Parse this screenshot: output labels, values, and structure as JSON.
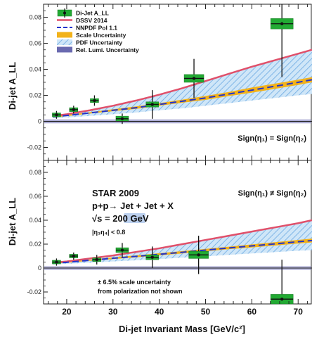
{
  "chart_data": {
    "type": "scatter",
    "xlabel": "Di-jet Invariant Mass [GeV/c²]",
    "xlim": [
      15,
      73
    ],
    "xticks": [
      20,
      30,
      40,
      50,
      60,
      70
    ],
    "panels": [
      {
        "id": "top",
        "ylabel": "Di-jet A_LL",
        "ylim": [
          -0.03,
          0.09
        ],
        "yticks": [
          -0.02,
          0,
          0.02,
          0.04,
          0.06,
          0.08
        ],
        "condition": "Sign(η₁) = Sign(η₂)",
        "legend": {
          "placement": "top-left",
          "entries": [
            {
              "label": "Di-Jet A_LL",
              "kind": "data"
            },
            {
              "label": "DSSV 2014",
              "kind": "line",
              "color": "#e0506a"
            },
            {
              "label": "NNPDF Pol 1.1",
              "kind": "dashed",
              "color": "#2233cc"
            },
            {
              "label": "Scale Uncertainty",
              "kind": "fill",
              "color": "#f2b21a"
            },
            {
              "label": "PDF Uncertainty",
              "kind": "hatch",
              "color": "#8fc3ee"
            },
            {
              "label": "Rel. Lumi. Uncertainty",
              "kind": "fill",
              "color": "#6a6ab0"
            }
          ]
        },
        "points": [
          {
            "x": 17.8,
            "y": 0.005,
            "err": 0.003,
            "sys": 0.0015
          },
          {
            "x": 21.5,
            "y": 0.009,
            "err": 0.003,
            "sys": 0.0015
          },
          {
            "x": 26.0,
            "y": 0.016,
            "err": 0.004,
            "sys": 0.0015
          },
          {
            "x": 32.0,
            "y": 0.002,
            "err": 0.004,
            "sys": 0.002
          },
          {
            "x": 38.5,
            "y": 0.013,
            "err": 0.011,
            "sys": 0.002
          },
          {
            "x": 47.5,
            "y": 0.033,
            "err": 0.015,
            "sys": 0.003
          },
          {
            "x": 66.5,
            "y": 0.075,
            "err": 0.041,
            "sys": 0.004
          }
        ]
      },
      {
        "id": "bottom",
        "ylabel": "Di-jet A_LL",
        "ylim": [
          -0.03,
          0.09
        ],
        "yticks": [
          -0.02,
          0,
          0.02,
          0.04,
          0.06,
          0.08
        ],
        "condition": "Sign(η₁) ≠ Sign(η₂)",
        "points": [
          {
            "x": 17.8,
            "y": 0.005,
            "err": 0.003,
            "sys": 0.0015
          },
          {
            "x": 21.5,
            "y": 0.01,
            "err": 0.003,
            "sys": 0.0015
          },
          {
            "x": 26.5,
            "y": 0.007,
            "err": 0.004,
            "sys": 0.0015
          },
          {
            "x": 32.0,
            "y": 0.015,
            "err": 0.006,
            "sys": 0.002
          },
          {
            "x": 38.5,
            "y": 0.009,
            "err": 0.009,
            "sys": 0.002
          },
          {
            "x": 48.5,
            "y": 0.011,
            "err": 0.016,
            "sys": 0.003
          },
          {
            "x": 66.5,
            "y": -0.026,
            "err": 0.033,
            "sys": 0.004
          }
        ]
      }
    ],
    "curves": {
      "top": {
        "x": [
          17,
          20,
          25,
          30,
          35,
          40,
          45,
          50,
          55,
          60,
          65,
          70,
          73
        ],
        "dssv": [
          0.004,
          0.0055,
          0.0085,
          0.012,
          0.016,
          0.0205,
          0.0255,
          0.031,
          0.0365,
          0.042,
          0.047,
          0.052,
          0.055
        ],
        "nnpdf": [
          0.0035,
          0.0045,
          0.0065,
          0.0085,
          0.0105,
          0.013,
          0.0155,
          0.018,
          0.021,
          0.024,
          0.027,
          0.03,
          0.032
        ],
        "pdf_hi": [
          0.004,
          0.0055,
          0.0085,
          0.012,
          0.016,
          0.0205,
          0.0255,
          0.031,
          0.0365,
          0.042,
          0.047,
          0.052,
          0.055
        ],
        "pdf_lo": [
          0.0025,
          0.003,
          0.0042,
          0.0055,
          0.0068,
          0.0085,
          0.01,
          0.012,
          0.014,
          0.016,
          0.018,
          0.02,
          0.021
        ],
        "scale_hi": [
          0.004,
          0.005,
          0.007,
          0.0093,
          0.0115,
          0.014,
          0.0167,
          0.0195,
          0.0226,
          0.026,
          0.029,
          0.032,
          0.034
        ],
        "scale_lo": [
          0.003,
          0.004,
          0.006,
          0.0078,
          0.0096,
          0.012,
          0.0143,
          0.0165,
          0.0194,
          0.022,
          0.025,
          0.028,
          0.03
        ]
      },
      "bottom": {
        "x": [
          17,
          20,
          25,
          30,
          35,
          40,
          45,
          50,
          55,
          60,
          65,
          70,
          73
        ],
        "dssv": [
          0.0045,
          0.0055,
          0.008,
          0.0105,
          0.0135,
          0.0165,
          0.02,
          0.0235,
          0.027,
          0.0305,
          0.034,
          0.0375,
          0.04
        ],
        "nnpdf": [
          0.004,
          0.0048,
          0.0065,
          0.0082,
          0.0098,
          0.0115,
          0.0132,
          0.015,
          0.0168,
          0.0185,
          0.0202,
          0.022,
          0.023
        ],
        "pdf_hi": [
          0.0045,
          0.0055,
          0.008,
          0.0105,
          0.0135,
          0.0165,
          0.02,
          0.0235,
          0.027,
          0.0305,
          0.034,
          0.0375,
          0.04
        ],
        "pdf_lo": [
          0.003,
          0.0035,
          0.0045,
          0.0055,
          0.0065,
          0.0075,
          0.0087,
          0.0098,
          0.011,
          0.0122,
          0.0133,
          0.0145,
          0.015
        ],
        "scale_hi": [
          0.0045,
          0.0052,
          0.007,
          0.0089,
          0.0106,
          0.0124,
          0.0142,
          0.016,
          0.0179,
          0.0198,
          0.0216,
          0.0235,
          0.0246
        ],
        "scale_lo": [
          0.0035,
          0.0044,
          0.006,
          0.0075,
          0.009,
          0.0106,
          0.0122,
          0.014,
          0.0157,
          0.0172,
          0.0188,
          0.0205,
          0.0214
        ]
      }
    },
    "annotations": {
      "experiment": "STAR 2009",
      "reaction": "p+p→ Jet + Jet + X",
      "energy_prefix": "√s = ",
      "energy_value": "200",
      "energy_unit": " GeV",
      "eta_cut": "|η₃η₄| < 0.8",
      "scale_note_line1": "± 6.5% scale uncertainty",
      "scale_note_line2": "from polarization not shown"
    },
    "colors": {
      "data_box": "#22aa33",
      "dssv": "#e0506a",
      "nnpdf": "#2233cc",
      "scale": "#f2b21a",
      "pdf": "#8fc3ee",
      "lumi": "#6a6ab0",
      "energy_highlight": "#bcd0ee"
    }
  }
}
